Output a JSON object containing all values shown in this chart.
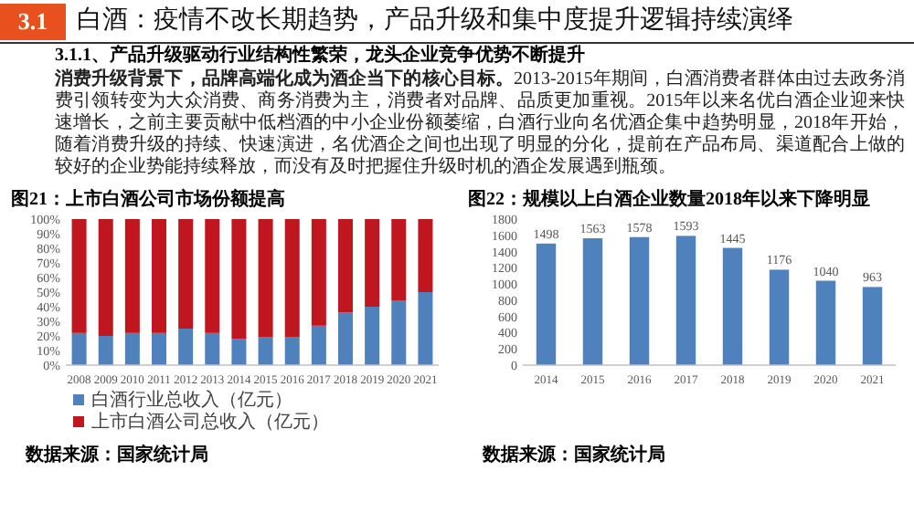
{
  "chart_data": [
    {
      "type": "other",
      "title": "白酒：疫情不改长期趋势，产品升级和集中度提升逻辑持续演绎",
      "subtitle": "3.1.1、产品升级驱动行业结构性繁荣，龙头企业竞争优势不断提升",
      "annotations": [
        "3.1",
        "**消费升级背景下，品牌高端化成为酒企当下的核心目标。**2013-2015年期间，白酒消费者群体由过去政务消费引领转变为大众消费、商务消费为主，消费者对品牌、品质更加重视。2015年以来名优白酒企业迎来快速增长，之前主要贡献中低档酒的中小企业份额萎缩，白酒行业向名优酒企集中趋势明显，2018年开始，随着消费升级的持续、快速演进，名优酒企之间也出现了明显的分化，提前在产品布局、渠道配合上做的较好的企业势能持续释放，而没有及时把握住升级时机的酒企发展遇到瓶颈。"
      ]
    },
    {
      "type": "bar",
      "stacked": true,
      "title": "图21：上市白酒公司市场份额提高",
      "categories": [
        "2008",
        "2009",
        "2010",
        "2011",
        "2012",
        "2013",
        "2014",
        "2015",
        "2016",
        "2017",
        "2018",
        "2019",
        "2020",
        "2021"
      ],
      "series": [
        {
          "name": "白酒行业总收入（亿元）",
          "color": "#4f81bd",
          "values": [
            22,
            20,
            22,
            22,
            25,
            22,
            18,
            19,
            19,
            27,
            36,
            40,
            44,
            50
          ]
        },
        {
          "name": "上市白酒公司总收入（亿元）",
          "color": "#c0161f",
          "values": [
            78,
            80,
            78,
            78,
            75,
            78,
            82,
            81,
            81,
            73,
            64,
            60,
            56,
            50
          ]
        }
      ],
      "ylim": [
        0,
        100
      ],
      "yticks": [
        {
          "value": 0,
          "label": "0%"
        },
        {
          "value": 10,
          "label": "10%"
        },
        {
          "value": 20,
          "label": "20%"
        },
        {
          "value": 30,
          "label": "30%"
        },
        {
          "value": 40,
          "label": "40%"
        },
        {
          "value": 50,
          "label": "50%"
        },
        {
          "value": 60,
          "label": "60%"
        },
        {
          "value": 70,
          "label": "70%"
        },
        {
          "value": 80,
          "label": "80%"
        },
        {
          "value": 90,
          "label": "90%"
        },
        {
          "value": 100,
          "label": "100%"
        }
      ],
      "legend": "bottom",
      "annotations": [
        "数据来源：国家统计局"
      ]
    },
    {
      "type": "bar",
      "title": "图22：规模以上白酒企业数量2018年以来下降明显",
      "categories": [
        "2014",
        "2015",
        "2016",
        "2017",
        "2018",
        "2019",
        "2020",
        "2021"
      ],
      "values": [
        1498,
        1563,
        1578,
        1593,
        1445,
        1176,
        1040,
        963
      ],
      "color": "#4f81bd",
      "ylim": [
        0,
        1800
      ],
      "yticks": [
        0,
        200,
        400,
        600,
        800,
        1000,
        1200,
        1400,
        1600,
        1800
      ],
      "data_labels": true,
      "annotations": [
        "数据来源：国家统计局"
      ]
    }
  ]
}
